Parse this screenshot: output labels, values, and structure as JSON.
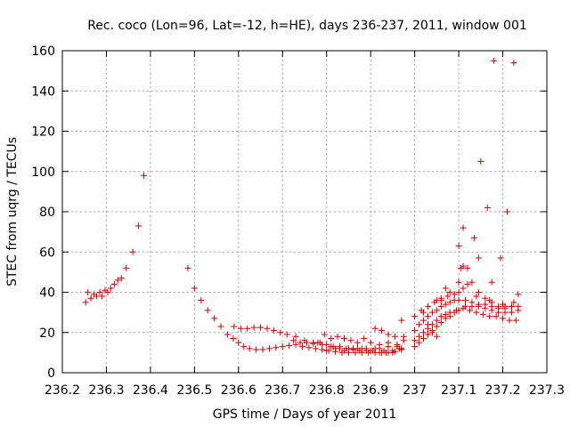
{
  "chart_data": {
    "type": "scatter",
    "title": "Rec. coco (Lon=96, Lat=-12, h=HE), days 236-237, 2011, window 001",
    "xlabel": "GPS time / Days of year 2011",
    "ylabel": "STEC from uqrg / TECUs",
    "xlim": [
      236.2,
      237.3
    ],
    "ylim": [
      0,
      160
    ],
    "xticks": [
      "236.2",
      "236.3",
      "236.4",
      "236.5",
      "236.6",
      "236.7",
      "236.8",
      "236.9",
      "237",
      "237.1",
      "237.2",
      "237.3"
    ],
    "yticks": [
      "0",
      "20",
      "40",
      "60",
      "80",
      "100",
      "120",
      "140",
      "160"
    ],
    "grid": true,
    "marker": "+",
    "color": "#cc0000",
    "series": [
      {
        "points": [
          [
            236.253,
            35
          ],
          [
            236.258,
            40
          ],
          [
            236.265,
            37
          ],
          [
            236.272,
            39
          ],
          [
            236.278,
            38
          ],
          [
            236.285,
            40
          ],
          [
            236.29,
            38
          ],
          [
            236.297,
            41
          ],
          [
            236.303,
            40
          ],
          [
            236.31,
            42
          ],
          [
            236.318,
            44
          ],
          [
            236.326,
            46
          ],
          [
            236.334,
            47
          ],
          [
            236.345,
            52
          ],
          [
            236.36,
            60
          ],
          [
            236.373,
            73
          ],
          [
            236.385,
            98
          ],
          [
            236.485,
            52
          ],
          [
            236.5,
            42
          ],
          [
            236.515,
            36
          ],
          [
            236.53,
            31
          ],
          [
            236.545,
            27
          ],
          [
            236.56,
            23
          ],
          [
            236.575,
            19
          ],
          [
            236.588,
            17
          ],
          [
            236.6,
            15
          ],
          [
            236.612,
            13
          ],
          [
            236.625,
            12
          ],
          [
            236.64,
            11.5
          ],
          [
            236.655,
            11.5
          ],
          [
            236.67,
            12
          ],
          [
            236.685,
            12.5
          ],
          [
            236.7,
            13
          ],
          [
            236.715,
            13.5
          ],
          [
            236.73,
            14
          ],
          [
            236.745,
            13
          ],
          [
            236.76,
            12.5
          ],
          [
            236.775,
            12
          ],
          [
            236.79,
            11.5
          ],
          [
            236.805,
            11
          ],
          [
            236.82,
            10.5
          ],
          [
            236.835,
            10
          ],
          [
            236.85,
            10
          ],
          [
            236.865,
            10
          ],
          [
            236.88,
            10
          ],
          [
            236.895,
            10
          ],
          [
            236.91,
            10
          ],
          [
            236.925,
            10
          ],
          [
            236.94,
            10
          ],
          [
            236.955,
            10.5
          ],
          [
            236.97,
            11.5
          ],
          [
            236.59,
            23
          ],
          [
            236.605,
            22
          ],
          [
            236.62,
            22
          ],
          [
            236.635,
            22.5
          ],
          [
            236.65,
            22.5
          ],
          [
            236.665,
            22
          ],
          [
            236.68,
            21
          ],
          [
            236.695,
            20
          ],
          [
            236.71,
            19
          ],
          [
            236.725,
            16
          ],
          [
            236.74,
            15
          ],
          [
            236.755,
            15
          ],
          [
            236.77,
            15
          ],
          [
            236.785,
            15
          ],
          [
            236.8,
            14
          ],
          [
            236.815,
            13
          ],
          [
            236.83,
            12
          ],
          [
            236.845,
            12
          ],
          [
            236.86,
            11.5
          ],
          [
            236.875,
            11
          ],
          [
            236.89,
            11
          ],
          [
            236.905,
            11
          ],
          [
            236.92,
            10
          ],
          [
            236.935,
            10
          ],
          [
            236.95,
            10
          ],
          [
            236.965,
            12
          ],
          [
            236.975,
            16
          ],
          [
            236.73,
            18
          ],
          [
            236.75,
            16
          ],
          [
            236.77,
            14.5
          ],
          [
            236.79,
            14
          ],
          [
            236.81,
            13
          ],
          [
            236.83,
            13
          ],
          [
            236.85,
            12
          ],
          [
            236.87,
            12
          ],
          [
            236.89,
            12
          ],
          [
            236.91,
            12
          ],
          [
            236.93,
            11
          ],
          [
            236.95,
            11
          ],
          [
            236.97,
            12
          ],
          [
            236.78,
            15
          ],
          [
            236.795,
            19
          ],
          [
            236.81,
            17
          ],
          [
            236.825,
            18
          ],
          [
            236.84,
            17
          ],
          [
            236.855,
            16
          ],
          [
            236.87,
            15
          ],
          [
            236.885,
            17
          ],
          [
            236.9,
            15
          ],
          [
            236.92,
            14
          ],
          [
            236.94,
            15
          ],
          [
            236.96,
            13
          ],
          [
            236.975,
            18
          ],
          [
            236.91,
            22
          ],
          [
            236.925,
            21
          ],
          [
            236.94,
            19
          ],
          [
            236.955,
            18
          ],
          [
            236.97,
            26
          ],
          [
            236.8,
            11
          ],
          [
            236.82,
            12
          ],
          [
            236.84,
            11
          ],
          [
            236.86,
            12
          ],
          [
            236.88,
            12
          ],
          [
            236.9,
            11
          ],
          [
            236.92,
            12
          ],
          [
            236.94,
            13
          ],
          [
            236.96,
            14
          ],
          [
            237.0,
            13
          ],
          [
            237.01,
            15
          ],
          [
            237.02,
            17
          ],
          [
            237.03,
            19
          ],
          [
            237.04,
            21
          ],
          [
            237.05,
            23
          ],
          [
            237.06,
            25
          ],
          [
            237.07,
            27
          ],
          [
            237.08,
            28
          ],
          [
            237.09,
            30
          ],
          [
            237.1,
            31
          ],
          [
            237.115,
            33
          ],
          [
            237.13,
            33
          ],
          [
            237.145,
            34
          ],
          [
            237.16,
            34
          ],
          [
            237.175,
            33
          ],
          [
            237.19,
            32
          ],
          [
            237.205,
            33
          ],
          [
            237.22,
            33
          ],
          [
            237.235,
            33
          ],
          [
            237.0,
            16
          ],
          [
            237.01,
            18
          ],
          [
            237.02,
            20
          ],
          [
            237.03,
            22
          ],
          [
            237.04,
            24
          ],
          [
            237.05,
            26
          ],
          [
            237.06,
            28
          ],
          [
            237.07,
            29
          ],
          [
            237.08,
            30
          ],
          [
            237.095,
            31
          ],
          [
            237.11,
            32
          ],
          [
            237.125,
            31
          ],
          [
            237.14,
            30
          ],
          [
            237.155,
            29
          ],
          [
            237.17,
            28
          ],
          [
            237.185,
            28
          ],
          [
            237.2,
            27
          ],
          [
            237.215,
            26
          ],
          [
            237.23,
            26
          ],
          [
            237.0,
            21
          ],
          [
            237.01,
            24
          ],
          [
            237.02,
            26
          ],
          [
            237.03,
            28
          ],
          [
            237.04,
            30
          ],
          [
            237.05,
            31
          ],
          [
            237.06,
            33
          ],
          [
            237.07,
            34
          ],
          [
            237.08,
            35
          ],
          [
            237.09,
            36
          ],
          [
            237.1,
            36
          ],
          [
            237.115,
            36
          ],
          [
            237.13,
            35
          ],
          [
            237.145,
            33
          ],
          [
            237.16,
            32
          ],
          [
            237.175,
            31
          ],
          [
            237.19,
            30
          ],
          [
            237.205,
            30
          ],
          [
            237.22,
            30
          ],
          [
            237.235,
            31
          ],
          [
            237.0,
            28
          ],
          [
            237.015,
            31
          ],
          [
            237.03,
            33
          ],
          [
            237.045,
            35
          ],
          [
            237.06,
            36
          ],
          [
            237.075,
            38
          ],
          [
            237.09,
            39
          ],
          [
            237.1,
            40
          ],
          [
            237.11,
            42
          ],
          [
            237.12,
            44
          ],
          [
            237.13,
            45
          ],
          [
            237.145,
            40
          ],
          [
            237.16,
            37
          ],
          [
            237.175,
            35
          ],
          [
            237.19,
            33
          ],
          [
            237.205,
            32
          ],
          [
            237.22,
            33
          ],
          [
            237.235,
            39
          ],
          [
            237.07,
            42
          ],
          [
            237.08,
            40
          ],
          [
            237.1,
            45
          ],
          [
            237.105,
            52
          ],
          [
            237.11,
            53
          ],
          [
            237.12,
            52
          ],
          [
            237.1,
            63
          ],
          [
            237.11,
            72
          ],
          [
            237.135,
            67
          ],
          [
            237.145,
            57
          ],
          [
            237.15,
            105
          ],
          [
            237.165,
            82
          ],
          [
            237.175,
            45
          ],
          [
            237.18,
            155
          ],
          [
            237.195,
            57
          ],
          [
            237.21,
            80
          ],
          [
            237.225,
            154
          ],
          [
            237.05,
            36
          ],
          [
            237.06,
            37
          ],
          [
            237.14,
            38
          ],
          [
            237.17,
            36
          ],
          [
            237.2,
            34
          ],
          [
            237.225,
            35
          ],
          [
            237.02,
            30
          ],
          [
            237.03,
            24
          ],
          [
            237.04,
            20
          ],
          [
            237.05,
            18
          ]
        ]
      }
    ]
  }
}
